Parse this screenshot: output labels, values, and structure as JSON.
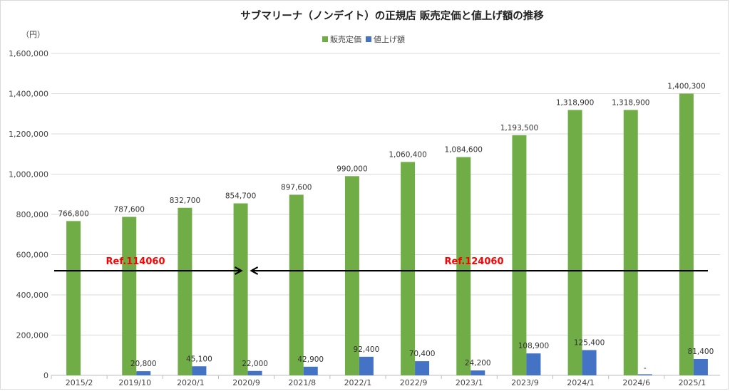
{
  "chart_data": {
    "type": "bar",
    "title": "サブマリーナ（ノンデイト）の正規店 販売定価と値上げ額の推移",
    "ylabel": "（円）",
    "xlabel": "",
    "ylim": [
      0,
      1600000
    ],
    "yticks": [
      0,
      200000,
      400000,
      600000,
      800000,
      1000000,
      1200000,
      1400000,
      1600000
    ],
    "ytick_labels": [
      "0",
      "200,000",
      "400,000",
      "600,000",
      "800,000",
      "1,000,000",
      "1,200,000",
      "1,400,000",
      "1,600,000"
    ],
    "grid": true,
    "legend_position": "top-center",
    "categories": [
      "2015/2",
      "2019/10",
      "2020/1",
      "2020/9",
      "2021/8",
      "2022/1",
      "2022/9",
      "2023/1",
      "2023/9",
      "2024/1",
      "2024/6",
      "2025/1"
    ],
    "series": [
      {
        "name": "販売定価",
        "color": "#70ad47",
        "values": [
          766800,
          787600,
          832700,
          854700,
          897600,
          990000,
          1060400,
          1084600,
          1193500,
          1318900,
          1318900,
          1400300
        ],
        "labels": [
          "766,800",
          "787,600",
          "832,700",
          "854,700",
          "897,600",
          "990,000",
          "1,060,400",
          "1,084,600",
          "1,193,500",
          "1,318,900",
          "1,318,900",
          "1,400,300"
        ]
      },
      {
        "name": "値上げ額",
        "color": "#4472c4",
        "values": [
          null,
          20800,
          45100,
          22000,
          42900,
          92400,
          70400,
          24200,
          108900,
          125400,
          0,
          81400
        ],
        "labels": [
          "",
          "20,800",
          "45,100",
          "22,000",
          "42,900",
          "92,400",
          "70,400",
          "24,200",
          "108,900",
          "125,400",
          "-",
          "81,400"
        ]
      }
    ],
    "annotations": {
      "arrow_level": 520000,
      "ref_left": {
        "text": "Ref.114060",
        "from_category": 0,
        "to_category": 3
      },
      "ref_right": {
        "text": "Ref.124060",
        "from_category": 3,
        "to_category": 11
      }
    }
  }
}
